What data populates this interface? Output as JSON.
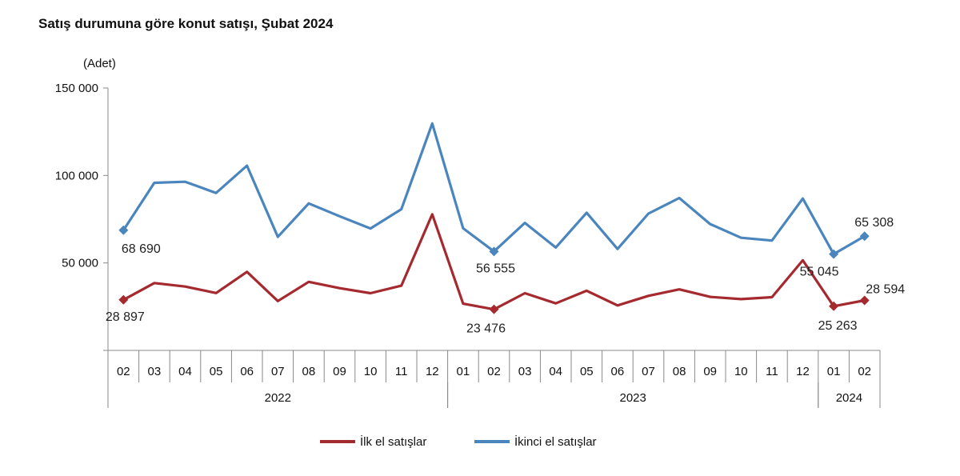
{
  "chart_data": {
    "type": "line",
    "title": "Satış durumuna göre konut satışı, Şubat 2024",
    "ylabel": "(Adet)",
    "xlabel": "",
    "ylim": [
      0,
      150000
    ],
    "y_ticks": [
      "50 000",
      "100 000",
      "150 000"
    ],
    "y_tick_values": [
      50000,
      100000,
      150000
    ],
    "categories": [
      "02",
      "03",
      "04",
      "05",
      "06",
      "07",
      "08",
      "09",
      "10",
      "11",
      "12",
      "01",
      "02",
      "03",
      "04",
      "05",
      "06",
      "07",
      "08",
      "09",
      "10",
      "11",
      "12",
      "01",
      "02"
    ],
    "years": [
      {
        "label": "2022",
        "count": 11
      },
      {
        "label": "2023",
        "count": 12
      },
      {
        "label": "2024",
        "count": 2
      }
    ],
    "series": [
      {
        "name": "İlk el satışlar",
        "color": "#a52a2f",
        "values": [
          28897,
          38500,
          36500,
          32800,
          44900,
          28200,
          39200,
          35600,
          32700,
          37000,
          77800,
          26700,
          23476,
          32700,
          26900,
          34100,
          25700,
          31200,
          34900,
          30600,
          29300,
          30400,
          51500,
          25263,
          28594
        ],
        "labels": [
          {
            "index": 0,
            "text": "28 897"
          },
          {
            "index": 12,
            "text": "23 476"
          },
          {
            "index": 23,
            "text": "25 263"
          },
          {
            "index": 24,
            "text": "28 594"
          }
        ]
      },
      {
        "name": "İkinci el satışlar",
        "color": "#4a86bd",
        "values": [
          68690,
          95800,
          96400,
          90000,
          105600,
          64900,
          84000,
          76700,
          69700,
          80700,
          129700,
          69800,
          56555,
          72900,
          58800,
          78700,
          58000,
          78200,
          87100,
          72200,
          64400,
          62800,
          86800,
          55045,
          65308
        ],
        "labels": [
          {
            "index": 0,
            "text": "68 690"
          },
          {
            "index": 12,
            "text": "56 555"
          },
          {
            "index": 23,
            "text": "55 045"
          },
          {
            "index": 24,
            "text": "65 308"
          }
        ]
      }
    ],
    "legend": "bottom"
  }
}
